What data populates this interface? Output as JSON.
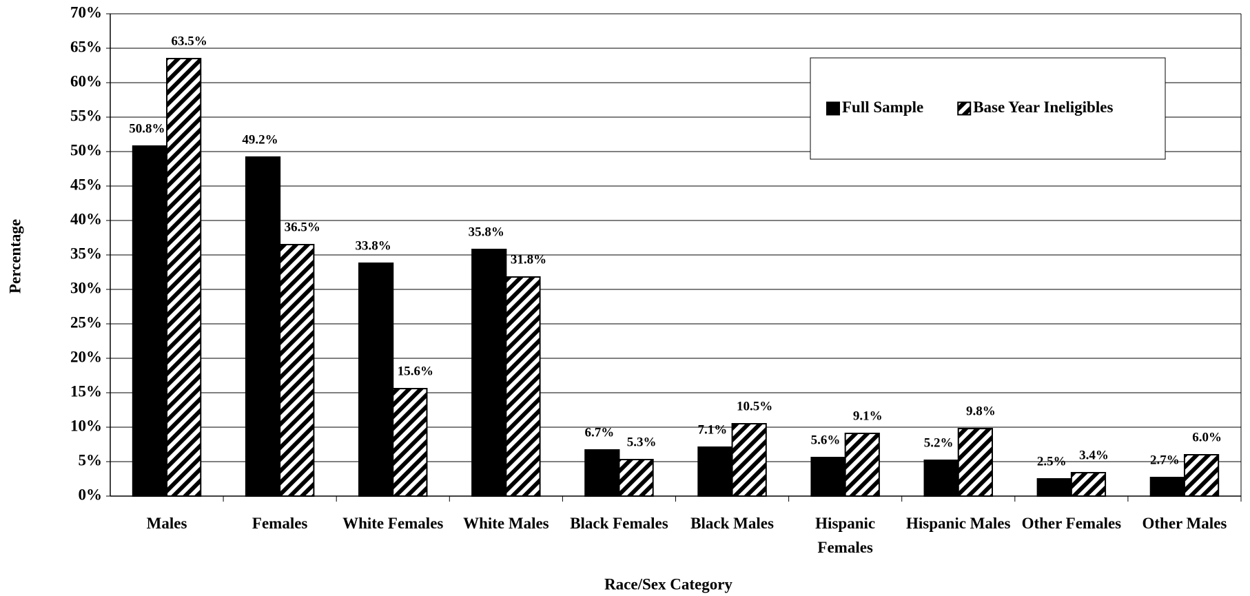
{
  "chart_data": {
    "type": "bar",
    "x_label": "Race/Sex Category",
    "y_label": "Percentage",
    "categories": [
      "Males",
      "Females",
      "White Females",
      "White Males",
      "Black Females",
      "Black Males",
      "Hispanic Females",
      "Hispanic Males",
      "Other Females",
      "Other Males"
    ],
    "series": [
      {
        "name": "Full Sample",
        "color": "#000000",
        "style": "solid",
        "values": [
          50.8,
          49.2,
          33.8,
          35.8,
          6.7,
          7.1,
          5.6,
          5.2,
          2.5,
          2.7
        ],
        "value_labels": [
          "50.8%",
          "49.2%",
          "33.8%",
          "35.8%",
          "6.7%",
          "7.1%",
          "5.6%",
          "5.2%",
          "2.5%",
          "2.7%"
        ]
      },
      {
        "name": "Base Year Ineligibles",
        "color": "#000000",
        "style": "hatched",
        "values": [
          63.5,
          36.5,
          15.6,
          31.8,
          5.3,
          10.5,
          9.1,
          9.8,
          3.4,
          6.0
        ],
        "value_labels": [
          "63.5%",
          "36.5%",
          "15.6%",
          "31.8%",
          "5.3%",
          "10.5%",
          "9.1%",
          "9.8%",
          "3.4%",
          "6.0%"
        ]
      }
    ],
    "ylim": [
      0,
      70
    ],
    "yticks": [
      {
        "value": 0,
        "label": "0%"
      },
      {
        "value": 5,
        "label": "5%"
      },
      {
        "value": 10,
        "label": "10%"
      },
      {
        "value": 15,
        "label": "15%"
      },
      {
        "value": 20,
        "label": "20%"
      },
      {
        "value": 25,
        "label": "25%"
      },
      {
        "value": 30,
        "label": "30%"
      },
      {
        "value": 35,
        "label": "35%"
      },
      {
        "value": 40,
        "label": "40%"
      },
      {
        "value": 45,
        "label": "45%"
      },
      {
        "value": 50,
        "label": "50%"
      },
      {
        "value": 55,
        "label": "55%"
      },
      {
        "value": 60,
        "label": "60%"
      },
      {
        "value": 65,
        "label": "65%"
      },
      {
        "value": 70,
        "label": "70%"
      }
    ],
    "grid": true,
    "legend": "top-right"
  }
}
